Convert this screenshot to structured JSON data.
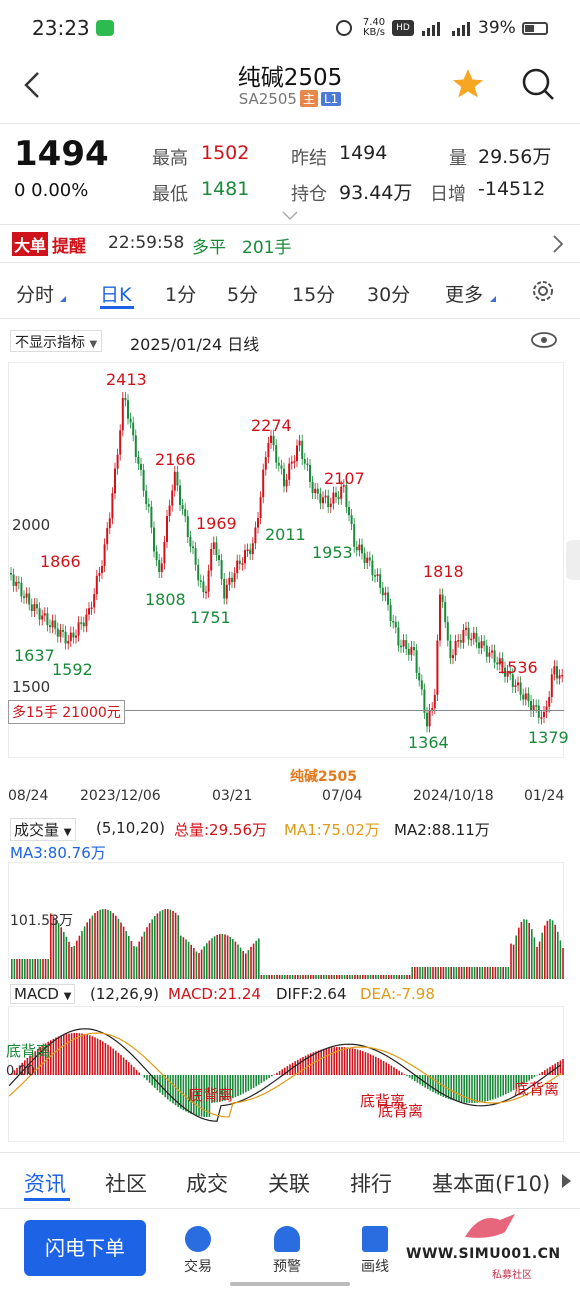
{
  "status_bar": {
    "time": "23:23",
    "net_speed": "7.40 KB/s",
    "battery": "39%"
  },
  "nav": {
    "title": "纯碱2505",
    "code": "SA2505",
    "tag_main": "主",
    "tag_l1": "L1"
  },
  "quote": {
    "price": "1494",
    "change": "0  0.00%",
    "high_label": "最高",
    "high": "1502",
    "low_label": "最低",
    "low": "1481",
    "prev_label": "昨结",
    "prev": "1494",
    "oi_label": "持仓",
    "oi": "93.44万",
    "vol_label": "量",
    "vol": "29.56万",
    "daily_label": "日增",
    "daily": "-14512"
  },
  "alert": {
    "logo1": "大单",
    "logo2": "提醒",
    "time": "22:59:58",
    "type": "多平",
    "qty": "201手"
  },
  "period_tabs": [
    "分时",
    "日K",
    "1分",
    "5分",
    "15分",
    "30分",
    "更多"
  ],
  "indicator_select": "不显示指标",
  "date_info": "2025/01/24  日线",
  "price_chart": {
    "labels": [
      "2413",
      "2166",
      "2274",
      "2107",
      "1969",
      "2011",
      "1953",
      "1808",
      "1751",
      "1866",
      "1637",
      "1592",
      "1818",
      "1536",
      "1364",
      "1379"
    ],
    "axis": [
      "2000",
      "1500"
    ],
    "position": "多15手  21000元",
    "watermark": "纯碱2505"
  },
  "x_dates": [
    "08/24",
    "2023/12/06",
    "03/21",
    "07/04",
    "2024/10/18",
    "01/24"
  ],
  "volume": {
    "label": "成交量",
    "params": "(5,10,20)",
    "total": "总量:29.56万",
    "ma1": "MA1:75.02万",
    "ma2": "MA2:88.11万",
    "ma3": "MA3:80.76万",
    "axis": "101.53万"
  },
  "macd": {
    "label": "MACD",
    "params": "(12,26,9)",
    "macd": "MACD:21.24",
    "diff": "DIFF:2.64",
    "dea": "DEA:-7.98",
    "zero": "0.00",
    "div1": "底背离",
    "div2": "底背离",
    "div3": "底背离",
    "div4": "底背离",
    "div5": "底背离"
  },
  "bottom_tabs": [
    "资讯",
    "社区",
    "成交",
    "关联",
    "排行",
    "基本面(F10)"
  ],
  "actions": {
    "flash": "闪电下单",
    "trade": "交易",
    "alert": "预警",
    "draw": "画线"
  },
  "watermark_site": "WWW.SIMU001.CN",
  "watermark_sub": "私募社区",
  "colors": {
    "up": "#d0121b",
    "down": "#1a8a3a",
    "accent": "#1d63e6"
  }
}
